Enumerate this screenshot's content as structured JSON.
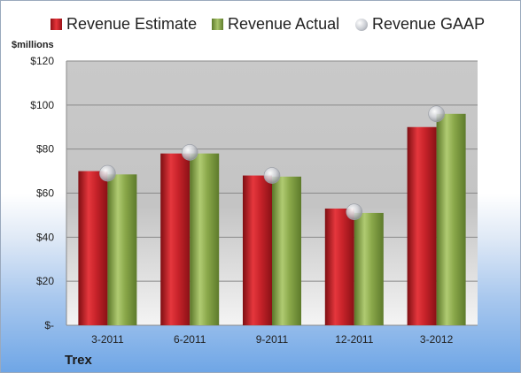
{
  "chart_data": {
    "type": "bar",
    "categories": [
      "3-2011",
      "6-2011",
      "9-2011",
      "12-2011",
      "3-2012"
    ],
    "series": [
      {
        "name": "Revenue Estimate",
        "type": "bar",
        "color": "#c8232a",
        "values": [
          70,
          78,
          68,
          53,
          90
        ]
      },
      {
        "name": "Revenue Actual",
        "type": "bar",
        "color": "#8aa84a",
        "values": [
          68.5,
          78,
          67.5,
          51,
          96
        ]
      },
      {
        "name": "Revenue GAAP",
        "type": "marker",
        "color": "#c9ccd2",
        "values": [
          69,
          78.5,
          68,
          51.5,
          96
        ]
      }
    ],
    "ylabel": "$millions",
    "yticks": [
      "$-",
      "$20",
      "$40",
      "$60",
      "$80",
      "$100",
      "$120"
    ],
    "ylim": [
      0,
      120
    ],
    "grid": true,
    "legend": "top"
  },
  "caption": "Trex"
}
